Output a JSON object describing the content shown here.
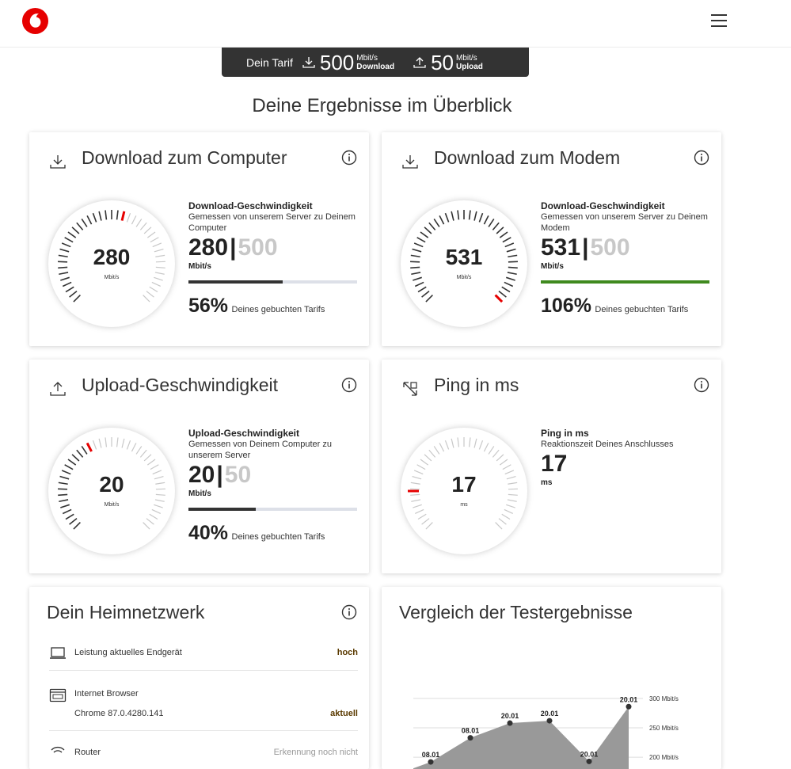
{
  "header": {
    "brand_icon": "vodafone-logo-icon",
    "menu_icon": "hamburger-menu-icon"
  },
  "tarif": {
    "label": "Dein Tarif",
    "download_value": "500",
    "download_unit": "Mbit/s",
    "download_label": "Download",
    "upload_value": "50",
    "upload_unit": "Mbit/s",
    "upload_label": "Upload"
  },
  "page_title": "Deine Ergebnisse im Überblick",
  "cards": {
    "download_computer": {
      "title": "Download zum Computer",
      "gauge_value": "280",
      "gauge_unit": "Mbit/s",
      "detail_title": "Download-Geschwindigkeit",
      "detail_sub": "Gemessen von unserem Server zu Deinem Computer",
      "value": "280",
      "sep": "|",
      "max": "500",
      "unit": "Mbit/s",
      "progress": 0.56,
      "percent": "56%",
      "percent_text": "Deines gebuchten Tarifs",
      "bar_color": "#333333"
    },
    "download_modem": {
      "title": "Download zum Modem",
      "gauge_value": "531",
      "gauge_unit": "Mbit/s",
      "detail_title": "Download-Geschwindigkeit",
      "detail_sub": "Gemessen von unserem Server zu Deinem Modem",
      "value": "531",
      "sep": "|",
      "max": "500",
      "unit": "Mbit/s",
      "progress": 1.0,
      "percent": "106%",
      "percent_text": "Deines gebuchten Tarifs",
      "bar_color": "#3f8a1e"
    },
    "upload": {
      "title": "Upload-Geschwindigkeit",
      "gauge_value": "20",
      "gauge_unit": "Mbit/s",
      "detail_title": "Upload-Geschwindigkeit",
      "detail_sub": "Gemessen von Deinem Computer zu unserem Server",
      "value": "20",
      "sep": "|",
      "max": "50",
      "unit": "Mbit/s",
      "progress": 0.4,
      "percent": "40%",
      "percent_text": "Deines gebuchten Tarifs",
      "bar_color": "#333333"
    },
    "ping": {
      "title": "Ping in ms",
      "gauge_value": "17",
      "gauge_unit": "ms",
      "detail_title": "Ping in ms",
      "detail_sub": "Reaktionszeit Deines Anschlusses",
      "value": "17",
      "unit": "ms"
    },
    "heimnetz": {
      "title": "Dein Heimnetzwerk",
      "rows": [
        {
          "icon": "laptop-icon",
          "label": "Leistung aktuelles Endgerät",
          "value": "hoch"
        },
        {
          "icon": "browser-icon",
          "label": "Internet Browser",
          "sub": "Chrome 87.0.4280.141",
          "value": "aktuell"
        },
        {
          "icon": "wifi-router-icon",
          "label": "Router",
          "value": "Erkennung noch nicht"
        }
      ]
    },
    "vergleich": {
      "title": "Vergleich der Testergebnisse"
    }
  },
  "chart_data": {
    "type": "area",
    "x": [
      "08.01",
      "08.01",
      "20.01",
      "20.01",
      "20.01",
      "20.01"
    ],
    "values": [
      192,
      233,
      258,
      262,
      193,
      286
    ],
    "yticks": [
      "300 Mbit/s",
      "250 Mbit/s",
      "200 Mbit/s"
    ],
    "ylim": [
      180,
      320
    ],
    "color": "#999999"
  },
  "colors": {
    "accent": "#e60000",
    "dark": "#333333"
  }
}
